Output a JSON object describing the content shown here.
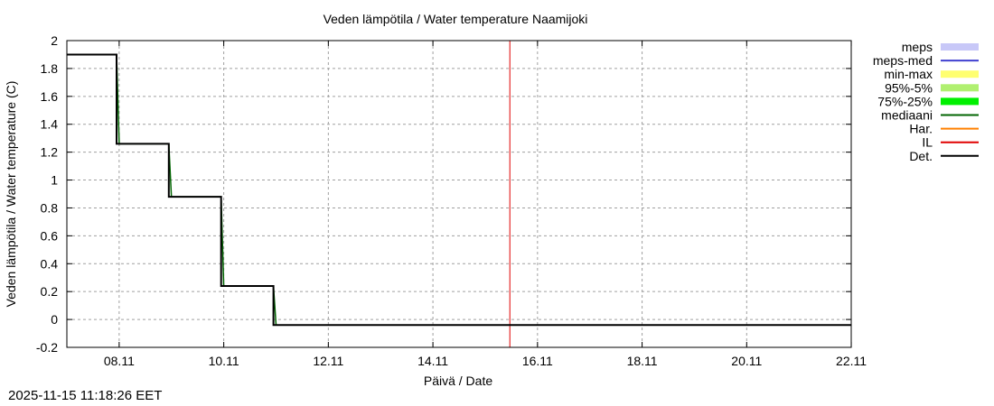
{
  "chart_data": {
    "type": "line",
    "title": "Veden lämpötila / Water temperature Naamijoki",
    "xlabel": "Päivä / Date",
    "ylabel": "Veden lämpötila / Water temperature (C)",
    "ylim": [
      -0.2,
      2
    ],
    "yticks": [
      -0.2,
      0,
      0.2,
      0.4,
      0.6,
      0.8,
      1,
      1.2,
      1.4,
      1.6,
      1.8,
      2
    ],
    "xlim": [
      "07.11",
      "22.11"
    ],
    "xticks": [
      "08.11",
      "10.11",
      "12.11",
      "14.11",
      "16.11",
      "18.11",
      "20.11",
      "22.11"
    ],
    "grid": true,
    "legend_position": "right-outside",
    "legend": [
      {
        "label": "meps",
        "color": "#c8c8f8",
        "style": "band"
      },
      {
        "label": "meps-med",
        "color": "#4040d0",
        "style": "line"
      },
      {
        "label": "min-max",
        "color": "#ffff70",
        "style": "band"
      },
      {
        "label": "95%-5%",
        "color": "#b0f070",
        "style": "band"
      },
      {
        "label": "75%-25%",
        "color": "#00f000",
        "style": "band"
      },
      {
        "label": "mediaani",
        "color": "#006400",
        "style": "line"
      },
      {
        "label": "Har.",
        "color": "#ff8000",
        "style": "line"
      },
      {
        "label": "IL",
        "color": "#e00000",
        "style": "line"
      },
      {
        "label": "Det.",
        "color": "#000000",
        "style": "line"
      }
    ],
    "series": [
      {
        "name": "Det.",
        "color": "#000000",
        "step": true,
        "x_days_from_0711": [
          0,
          0.95,
          0.95,
          1.95,
          1.95,
          2.95,
          2.95,
          3.95,
          3.95,
          15.0
        ],
        "values": [
          1.9,
          1.9,
          1.26,
          1.26,
          0.88,
          0.88,
          0.24,
          0.24,
          -0.04,
          -0.04
        ]
      },
      {
        "name": "mediaani",
        "color": "#006400",
        "step": true,
        "x_days_from_0711": [
          0,
          0.95,
          1.0,
          1.95,
          2.0,
          2.95,
          3.0,
          3.95,
          4.0,
          15.0
        ],
        "values": [
          1.9,
          1.9,
          1.26,
          1.26,
          0.88,
          0.88,
          0.24,
          0.24,
          -0.04,
          -0.04
        ]
      }
    ],
    "vertical_markers": [
      {
        "name": "IL",
        "color": "#e00000",
        "x": "15.11 11:18"
      }
    ]
  },
  "footer": {
    "timestamp": "2025-11-15 11:18:26 EET"
  }
}
